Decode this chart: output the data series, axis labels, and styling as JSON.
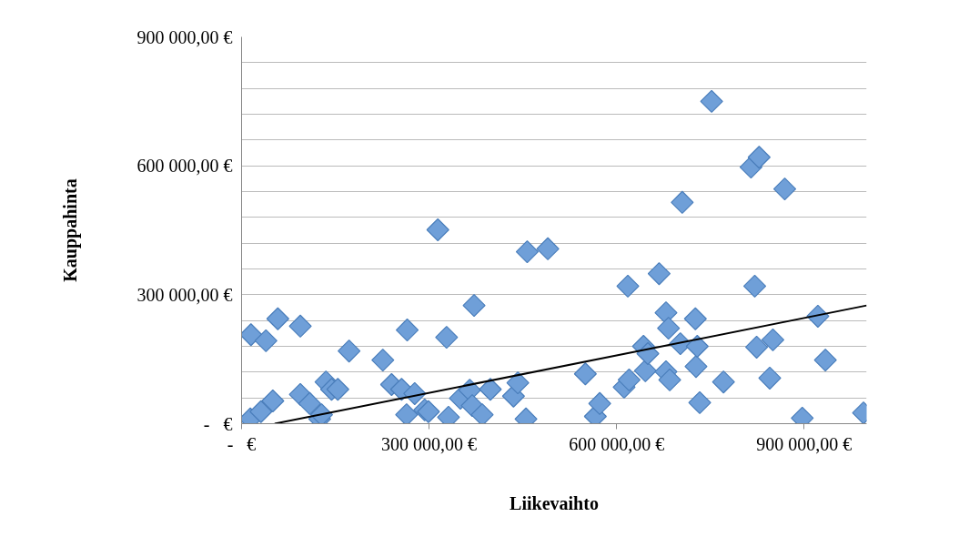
{
  "chart_data": {
    "type": "scatter",
    "xlabel": "Liikevaihto",
    "ylabel": "Kauppahinta",
    "xlim": [
      0,
      1000000
    ],
    "ylim": [
      0,
      900000
    ],
    "xticks": [
      {
        "value": 0,
        "label": "-   €"
      },
      {
        "value": 300000,
        "label": "300 000,00 €"
      },
      {
        "value": 600000,
        "label": "600 000,00 €"
      },
      {
        "value": 900000,
        "label": "900 000,00 €"
      }
    ],
    "yticks": [
      {
        "value": 0,
        "label": "-   €"
      },
      {
        "value": 60000,
        "label": null
      },
      {
        "value": 120000,
        "label": null
      },
      {
        "value": 180000,
        "label": null
      },
      {
        "value": 240000,
        "label": null
      },
      {
        "value": 300000,
        "label": "300 000,00 €"
      },
      {
        "value": 360000,
        "label": null
      },
      {
        "value": 420000,
        "label": null
      },
      {
        "value": 480000,
        "label": null
      },
      {
        "value": 540000,
        "label": null
      },
      {
        "value": 600000,
        "label": "600 000,00 €"
      },
      {
        "value": 660000,
        "label": null
      },
      {
        "value": 720000,
        "label": null
      },
      {
        "value": 780000,
        "label": null
      },
      {
        "value": 840000,
        "label": null
      },
      {
        "value": 900000,
        "label": "900 000,00 €"
      }
    ],
    "grid": "y",
    "marker": "diamond",
    "series": [
      {
        "color": "#6f9fd8",
        "x": [
          14000,
          15000,
          31000,
          39000,
          50000,
          58000,
          94000,
          94000,
          109000,
          125000,
          128000,
          135000,
          144000,
          154000,
          172000,
          226000,
          240000,
          256000,
          265000,
          264000,
          277000,
          293000,
          299000,
          314000,
          328000,
          331000,
          350000,
          365000,
          369000,
          372000,
          385000,
          398000,
          435000,
          442000,
          455000,
          457000,
          490000,
          550000,
          566000,
          573000,
          612000,
          618000,
          620000,
          643000,
          646000,
          650000,
          668000,
          679000,
          679000,
          683000,
          685000,
          702000,
          705000,
          727000,
          726000,
          729000,
          733000,
          752000,
          771000,
          815000,
          828000,
          821000,
          824000,
          845000,
          850000,
          869000,
          897000,
          922000,
          934000,
          995000
        ],
        "values": [
          11000,
          207000,
          28000,
          193000,
          53000,
          244000,
          68000,
          227000,
          47000,
          11000,
          21000,
          97000,
          80000,
          80000,
          169000,
          148000,
          91000,
          80000,
          218000,
          21000,
          70000,
          32000,
          28000,
          451000,
          201000,
          15000,
          59000,
          78000,
          42000,
          275000,
          21000,
          80000,
          64000,
          95000,
          11000,
          400000,
          407000,
          116000,
          17000,
          47000,
          85000,
          320000,
          102000,
          180000,
          123000,
          163000,
          349000,
          258000,
          121000,
          222000,
          102000,
          186000,
          515000,
          133000,
          244000,
          180000,
          49000,
          750000,
          97000,
          597000,
          620000,
          320000,
          178000,
          106000,
          195000,
          546000,
          13000,
          250000,
          148000,
          25000
        ]
      },
      {
        "type": "line",
        "color": "#000000",
        "marker": "none",
        "line_style": "solid",
        "x": [
          53000,
          1000000
        ],
        "values": [
          0,
          275000
        ]
      }
    ]
  }
}
